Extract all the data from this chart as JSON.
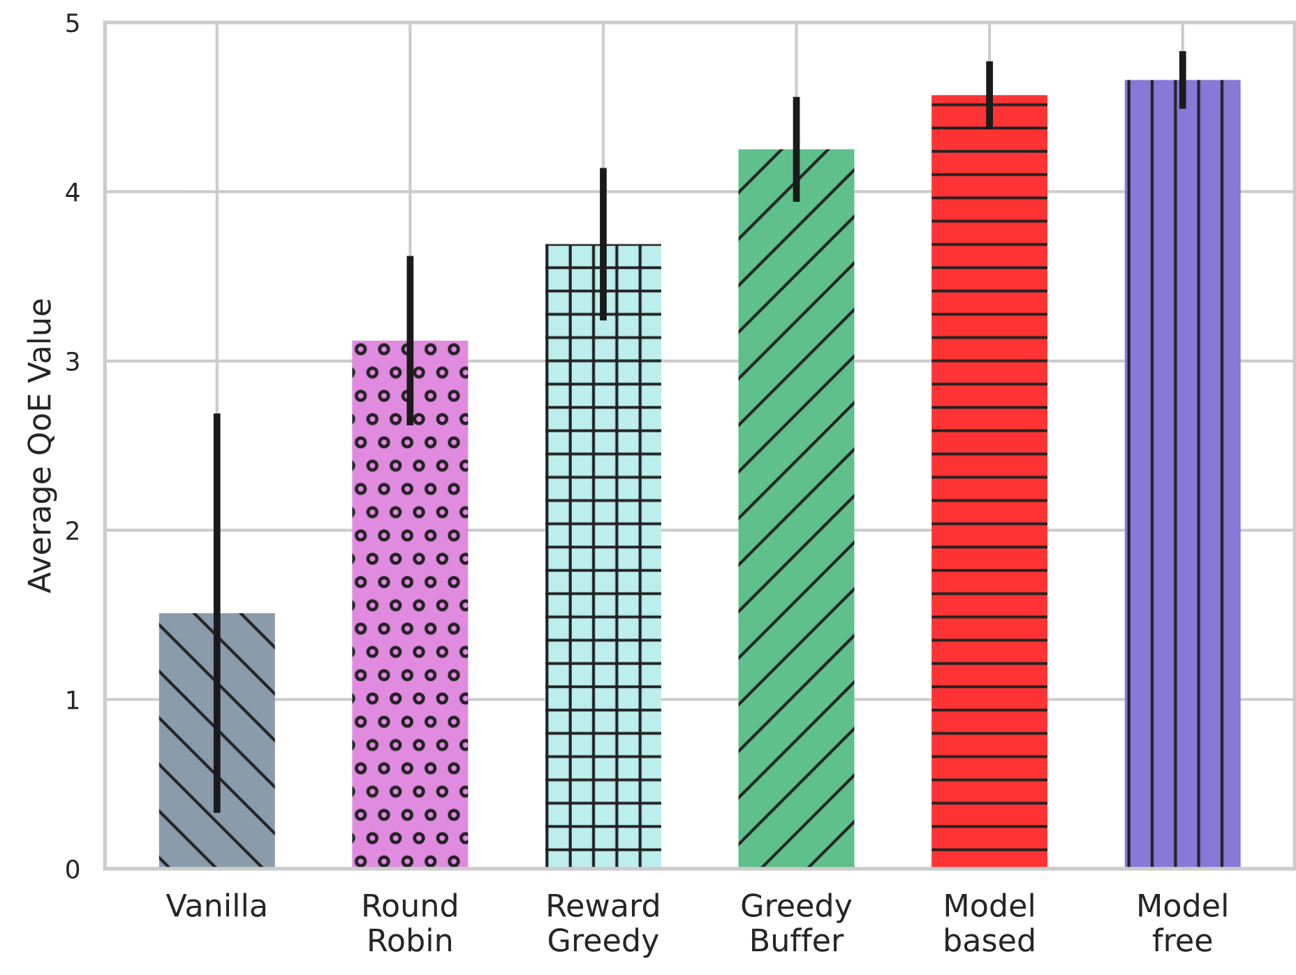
{
  "chart_data": {
    "type": "bar",
    "ylabel": "Average QoE Value",
    "categories": [
      "Vanilla",
      "Round\nRobin",
      "Reward\nGreedy",
      "Greedy\nBuffer",
      "Model\nbased",
      "Model\nfree"
    ],
    "values": [
      1.51,
      3.12,
      3.69,
      4.25,
      4.57,
      4.66
    ],
    "errors": [
      1.18,
      0.5,
      0.45,
      0.31,
      0.2,
      0.17
    ],
    "colors": [
      "#8a9bac",
      "#e08ae0",
      "#bdeeee",
      "#5fc08b",
      "#ff3333",
      "#8878d8"
    ],
    "ylim": [
      0,
      5
    ],
    "yticks": [
      0,
      1,
      2,
      3,
      4,
      5
    ],
    "grid": true
  }
}
